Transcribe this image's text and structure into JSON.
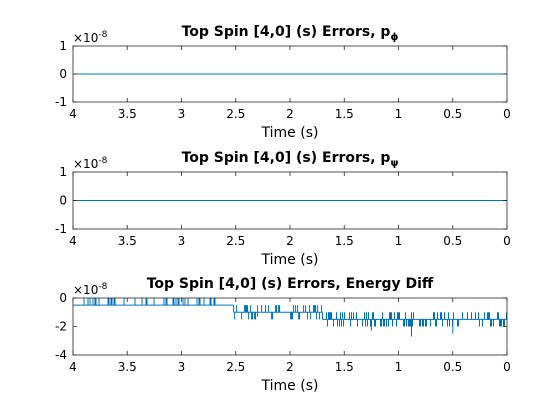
{
  "chart_data": [
    {
      "type": "line",
      "title": "Top Spin [4,0] (s) Errors, p",
      "title_sub": "ϕ",
      "xlabel": "Time (s)",
      "ylabel": "",
      "xlim": [
        4,
        0
      ],
      "x_reversed": true,
      "ylim": [
        -1,
        1
      ],
      "y_exponent_label": "×10",
      "y_exponent": "-8",
      "xticks": [
        "4",
        "3.5",
        "3",
        "2.5",
        "2",
        "1.5",
        "1",
        "0.5",
        "0"
      ],
      "yticks": [
        "1",
        "0",
        "-1"
      ],
      "series": [
        {
          "color": "#0072BD",
          "x": [
            4,
            0
          ],
          "y": [
            0,
            0
          ]
        }
      ]
    },
    {
      "type": "line",
      "title": "Top Spin [4,0] (s) Errors, p",
      "title_sub": "ψ",
      "xlabel": "Time (s)",
      "ylabel": "",
      "xlim": [
        4,
        0
      ],
      "x_reversed": true,
      "ylim": [
        -1,
        1
      ],
      "y_exponent_label": "×10",
      "y_exponent": "-8",
      "xticks": [
        "4",
        "3.5",
        "3",
        "2.5",
        "2",
        "1.5",
        "1",
        "0.5",
        "0"
      ],
      "yticks": [
        "1",
        "0",
        "-1"
      ],
      "series": [
        {
          "color": "#0072BD",
          "x": [
            4,
            0
          ],
          "y": [
            0,
            0
          ]
        }
      ]
    },
    {
      "type": "line",
      "title": "Top Spin [4,0] (s) Errors, Energy Diff",
      "title_sub": "",
      "xlabel": "Time (s)",
      "ylabel": "",
      "xlim": [
        4,
        0
      ],
      "x_reversed": true,
      "ylim": [
        -4,
        0
      ],
      "y_exponent_label": "×10",
      "y_exponent": "-8",
      "xticks": [
        "4",
        "3.5",
        "3",
        "2.5",
        "2",
        "1.5",
        "1",
        "0.5",
        "0"
      ],
      "yticks": [
        "0",
        "-2",
        "-4"
      ],
      "series": [
        {
          "color": "#0072BD",
          "description": "quantization noise switching between discrete levels",
          "segments": [
            {
              "x_range": [
                4.0,
                2.52
              ],
              "levels": [
                0,
                -0.5
              ],
              "base": -0.5
            },
            {
              "x_range": [
                2.52,
                1.7
              ],
              "levels": [
                -0.5,
                -1.5
              ],
              "base": -1.0
            },
            {
              "x_range": [
                1.7,
                0.0
              ],
              "levels": [
                -1.0,
                -2.0
              ],
              "base": -1.5
            }
          ]
        }
      ]
    }
  ]
}
